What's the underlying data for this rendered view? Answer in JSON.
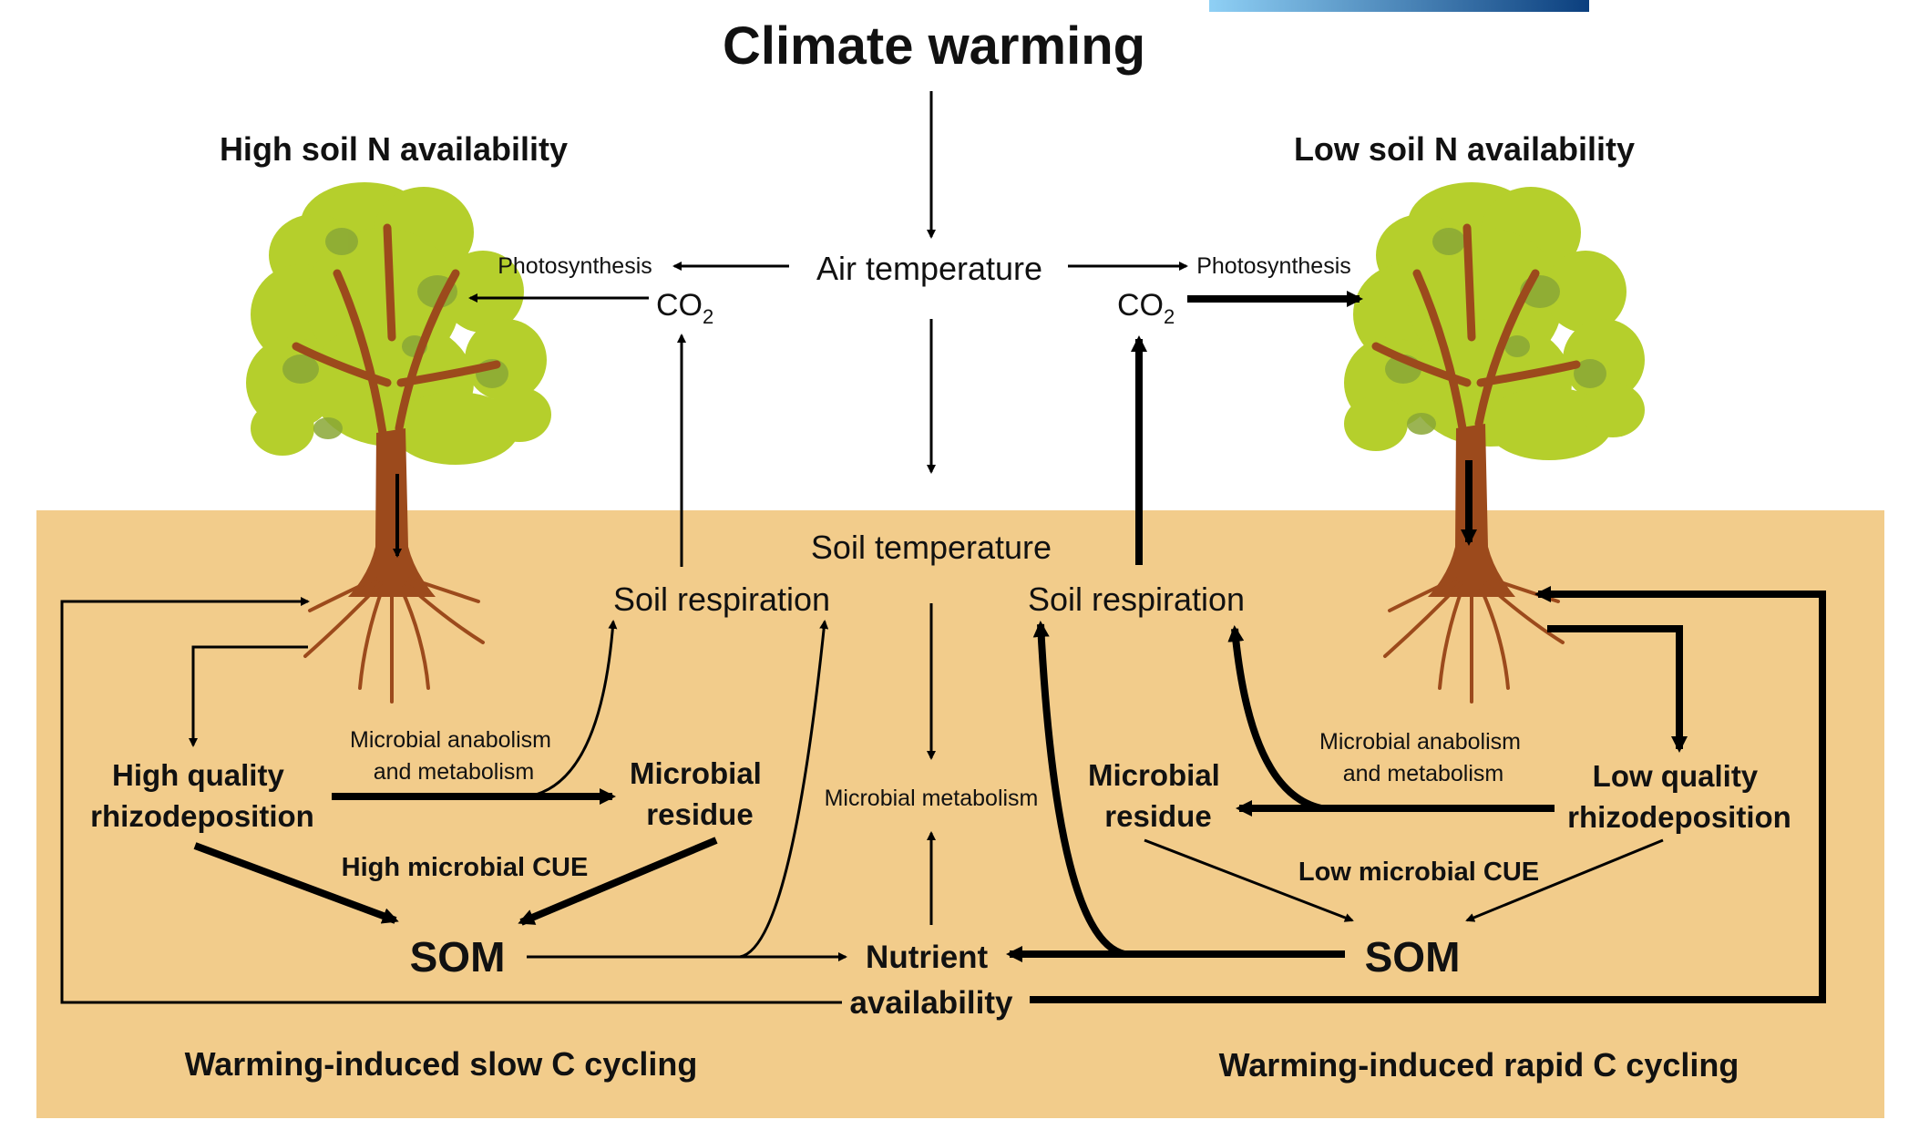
{
  "title": "Climate warming",
  "left": {
    "heading": "High soil N availability",
    "heading_color": "#1874c9",
    "footer": "Warming-induced slow C cycling",
    "photosynthesis": "Photosynthesis",
    "co2": "CO",
    "co2_sub": "2",
    "soil_respiration": "Soil respiration",
    "rhizo_line1": "High quality",
    "rhizo_line2": "rhizodeposition",
    "anabolism_line1": "Microbial anabolism",
    "anabolism_line2": "and metabolism",
    "residue_line1": "Microbial",
    "residue_line2": "residue",
    "cue": "High microbial CUE",
    "som": "SOM"
  },
  "right": {
    "heading": "Low soil N availability",
    "heading_color": "#e8191e",
    "footer": "Warming-induced rapid C cycling",
    "photosynthesis": "Photosynthesis",
    "co2": "CO",
    "co2_sub": "2",
    "soil_respiration": "Soil respiration",
    "rhizo_line1": "Low quality",
    "rhizo_line2": "rhizodeposition",
    "anabolism_line1": "Microbial anabolism",
    "anabolism_line2": "and metabolism",
    "residue_line1": "Microbial",
    "residue_line2": "residue",
    "cue": "Low microbial CUE",
    "som": "SOM"
  },
  "center": {
    "air_temperature": "Air temperature",
    "soil_temperature": "Soil temperature",
    "microbial_metabolism": "Microbial metabolism",
    "nutrient_line1": "Nutrient",
    "nutrient_line2": "availability"
  },
  "colors": {
    "soil": "#f2cc8b",
    "trunk": "#9c4a1c",
    "canopy_light": "#b5cf2c",
    "canopy_dark": "#8aa836",
    "arrow": "#000000",
    "banner_start": "#8fd0f5",
    "banner_end": "#0b3f7e"
  },
  "icons": [
    "tree-icon-left",
    "tree-icon-right",
    "arrow-icon"
  ]
}
